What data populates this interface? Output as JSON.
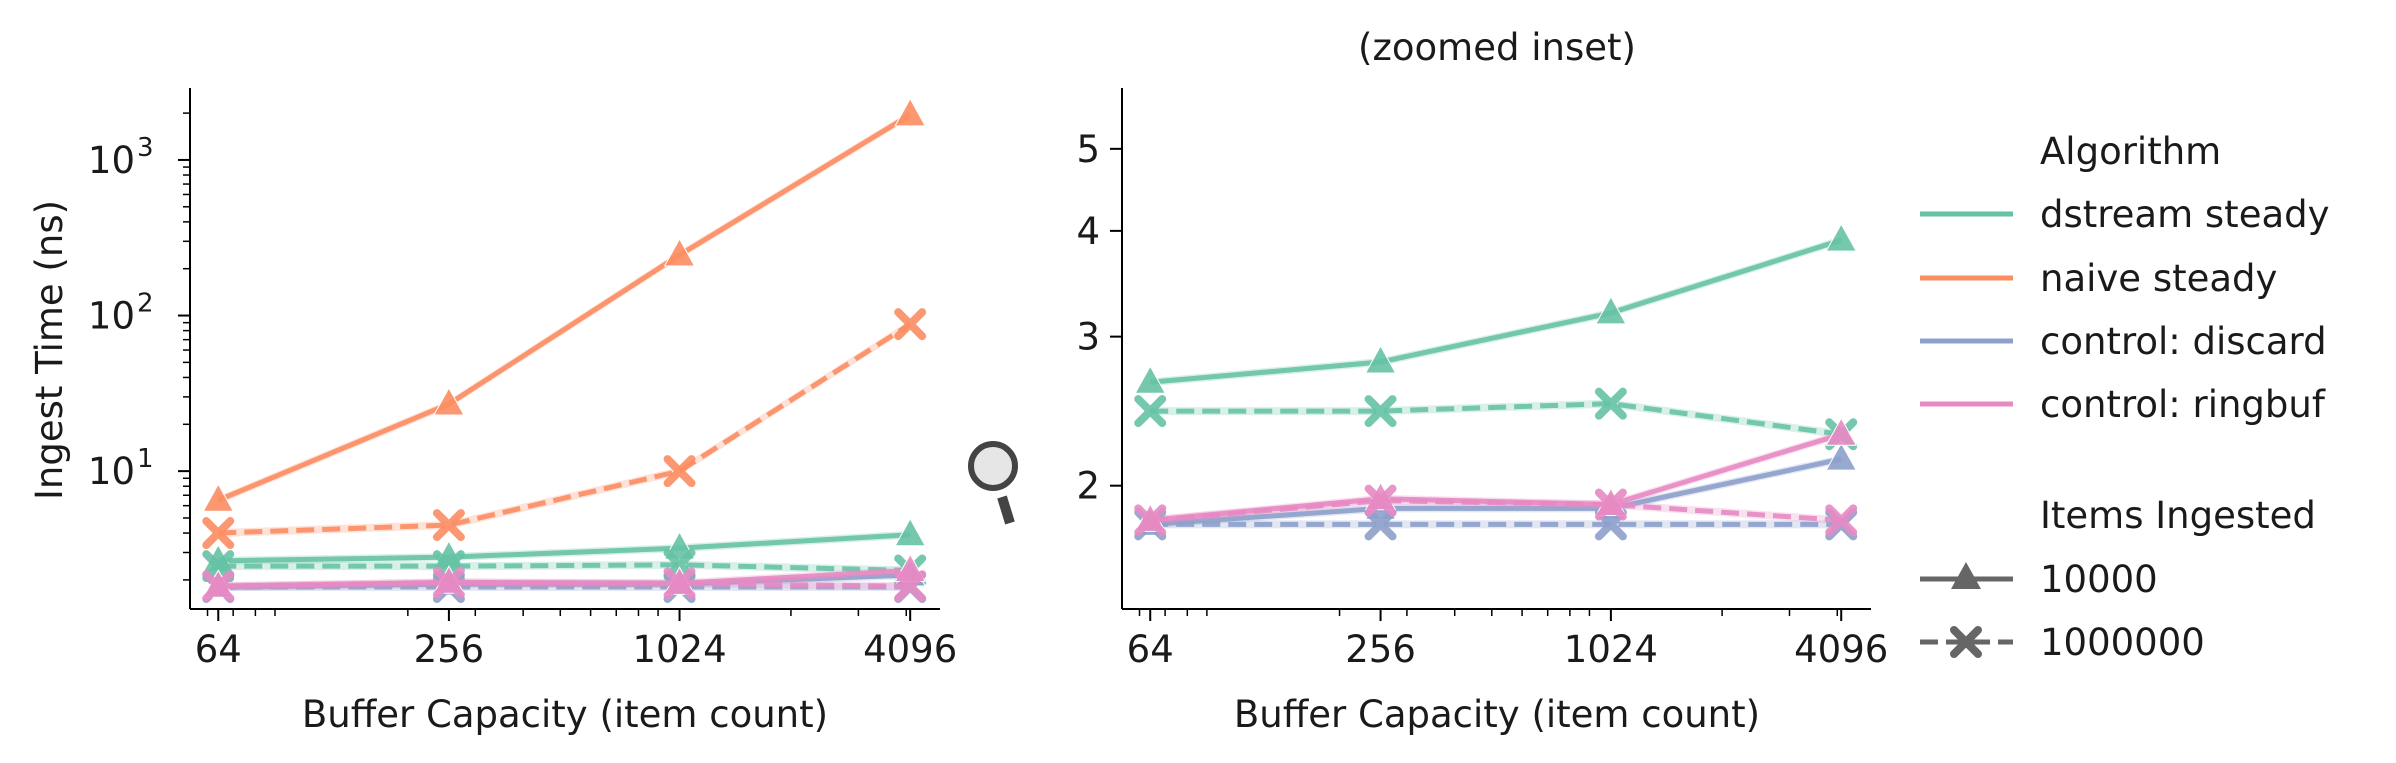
{
  "colors": {
    "dstream steady": "#66c2a5",
    "naive steady": "#fc8d62",
    "control: discard": "#8da0cb",
    "control: ringbuf": "#e78ac3",
    "legend_gray": "#666666"
  },
  "icons": {
    "inset_marker": "magnifier-icon"
  },
  "chart_data": [
    {
      "type": "line",
      "title": "",
      "xlabel": "Buffer Capacity (item count)",
      "ylabel": "Ingest Time (ns)",
      "xscale": "log2",
      "yscale": "log10",
      "xlim": [
        54,
        4900
      ],
      "ylim": [
        1.3,
        2900
      ],
      "x_ticks": [
        64,
        256,
        1024,
        4096
      ],
      "x_tick_labels": [
        "64",
        "256",
        "1024",
        "4096"
      ],
      "y_ticks": [
        10,
        100,
        1000
      ],
      "y_tick_labels": [
        {
          "base": "10",
          "exp": "1"
        },
        {
          "base": "10",
          "exp": "2"
        },
        {
          "base": "10",
          "exp": "3"
        }
      ],
      "x": [
        64,
        256,
        1024,
        4096
      ],
      "series": [
        {
          "algorithm": "dstream steady",
          "items": "10000",
          "values": [
            2.65,
            2.8,
            3.2,
            3.9
          ]
        },
        {
          "algorithm": "dstream steady",
          "items": "1000000",
          "values": [
            2.45,
            2.45,
            2.5,
            2.3
          ]
        },
        {
          "algorithm": "naive steady",
          "items": "10000",
          "values": [
            6.5,
            27,
            245,
            1950
          ]
        },
        {
          "algorithm": "naive steady",
          "items": "1000000",
          "values": [
            4.0,
            4.5,
            10,
            88
          ]
        },
        {
          "algorithm": "control: discard",
          "items": "10000",
          "values": [
            1.8,
            1.88,
            1.88,
            2.15
          ]
        },
        {
          "algorithm": "control: discard",
          "items": "1000000",
          "values": [
            1.8,
            1.8,
            1.8,
            1.8
          ]
        },
        {
          "algorithm": "control: ringbuf",
          "items": "10000",
          "values": [
            1.82,
            1.93,
            1.9,
            2.3
          ]
        },
        {
          "algorithm": "control: ringbuf",
          "items": "1000000",
          "values": [
            1.82,
            1.92,
            1.9,
            1.82
          ]
        }
      ]
    },
    {
      "type": "line",
      "title": "(zoomed inset)",
      "xlabel": "Buffer Capacity (item count)",
      "ylabel": "",
      "xscale": "log2",
      "yscale": "log10",
      "xlim": [
        54,
        4900
      ],
      "ylim": [
        1.43,
        5.9
      ],
      "x_ticks": [
        64,
        256,
        1024,
        4096
      ],
      "x_tick_labels": [
        "64",
        "256",
        "1024",
        "4096"
      ],
      "y_ticks": [
        2,
        3,
        4,
        5
      ],
      "y_tick_labels": [
        "2",
        "3",
        "4",
        "5"
      ],
      "x": [
        64,
        256,
        1024,
        4096
      ],
      "series": [
        {
          "algorithm": "dstream steady",
          "items": "10000",
          "values": [
            2.65,
            2.8,
            3.2,
            3.9
          ]
        },
        {
          "algorithm": "dstream steady",
          "items": "1000000",
          "values": [
            2.45,
            2.45,
            2.5,
            2.3
          ]
        },
        {
          "algorithm": "control: discard",
          "items": "10000",
          "values": [
            1.8,
            1.88,
            1.88,
            2.15
          ]
        },
        {
          "algorithm": "control: discard",
          "items": "1000000",
          "values": [
            1.8,
            1.8,
            1.8,
            1.8
          ]
        },
        {
          "algorithm": "control: ringbuf",
          "items": "10000",
          "values": [
            1.82,
            1.93,
            1.9,
            2.3
          ]
        },
        {
          "algorithm": "control: ringbuf",
          "items": "1000000",
          "values": [
            1.82,
            1.92,
            1.9,
            1.82
          ]
        }
      ]
    }
  ],
  "legend": {
    "placement": "right",
    "algorithm_title": "Algorithm",
    "algorithms": [
      "dstream steady",
      "naive steady",
      "control: discard",
      "control: ringbuf"
    ],
    "items_title": "Items Ingested",
    "items": [
      {
        "label": "10000",
        "marker": "triangle",
        "dash": "solid"
      },
      {
        "label": "1000000",
        "marker": "x",
        "dash": "dashed"
      }
    ]
  }
}
